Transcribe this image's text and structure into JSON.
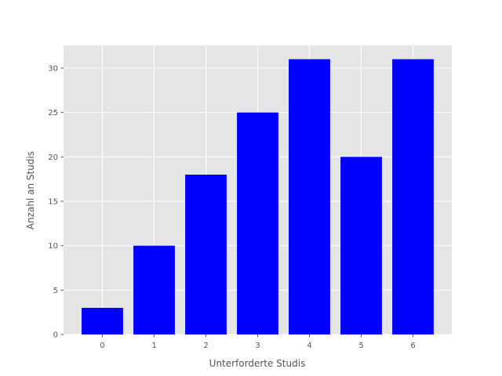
{
  "chart_data": {
    "type": "bar",
    "title": "",
    "xlabel": "Unterforderte Studis",
    "ylabel": "Anzahl an Studis",
    "x": [
      0,
      1,
      2,
      3,
      4,
      5,
      6
    ],
    "x_tick_labels": [
      "0",
      "1",
      "2",
      "3",
      "4",
      "5",
      "6"
    ],
    "values": [
      3,
      10,
      18,
      25,
      31,
      20,
      31
    ],
    "xlim": [
      -0.75,
      6.75
    ],
    "ylim": [
      0,
      32.55
    ],
    "y_ticks": [
      0,
      5,
      10,
      15,
      20,
      25,
      30
    ],
    "y_tick_labels": [
      "0",
      "5",
      "10",
      "15",
      "20",
      "25",
      "30"
    ],
    "grid": true,
    "legend": "none",
    "colors": {
      "bar": "#0000ff",
      "plot_background": "#e5e5e5",
      "grid": "#ffffff",
      "text": "#555555"
    }
  }
}
